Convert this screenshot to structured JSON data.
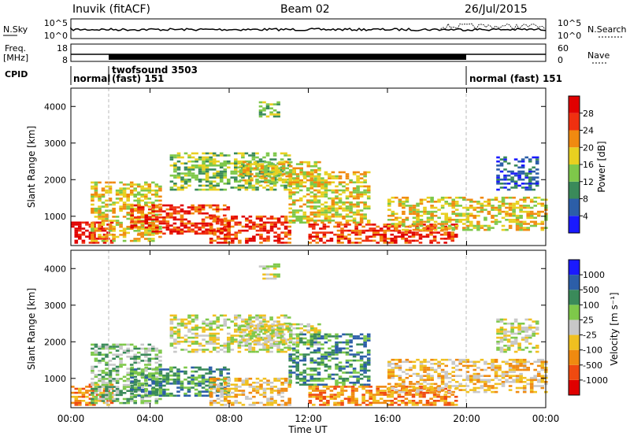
{
  "header": {
    "station": "Inuvik (fitACF)",
    "beam": "Beam 02",
    "date": "26/Jul/2015"
  },
  "noise_panel": {
    "left_label": "N.Sky",
    "left_tick_top": "10^5",
    "left_tick_bottom": "10^0",
    "right_label": "N.Search",
    "right_tick_top": "10^5",
    "right_tick_bottom": "10^0"
  },
  "freq_panel": {
    "left_label_line1": "Freq.",
    "left_label_line2": "[MHz]",
    "left_tick_top": "18",
    "left_tick_bottom": "8",
    "right_label": "Nave",
    "right_tick_top": "60",
    "right_tick_bottom": "0"
  },
  "cpid": {
    "label": "CPID",
    "segments": [
      {
        "text": "normal",
        "text2": ""
      },
      {
        "text": "twofsound 3503",
        "text2": "(fast) 151"
      },
      {
        "text": "normal (fast) 151",
        "text2": ""
      }
    ]
  },
  "colors": {
    "power": [
      "#1a1aff",
      "#2c5ea8",
      "#3a8a5a",
      "#7ec84a",
      "#e8d020",
      "#f08a10",
      "#f03010",
      "#e00000"
    ],
    "velocity": [
      "#e00000",
      "#f04a10",
      "#f08a10",
      "#f0c020",
      "#c8c8c8",
      "#7ec84a",
      "#3a8a5a",
      "#2c5ea8",
      "#1a1aff"
    ]
  },
  "chart_data": [
    {
      "type": "heatmap",
      "ylabel": "Slant Range [km]",
      "yticks": [
        "1000",
        "2000",
        "3000",
        "4000"
      ],
      "ylim": [
        200,
        4500
      ],
      "colorbar": {
        "label": "Power [dB]",
        "ticks": [
          "4",
          "8",
          "12",
          "16",
          "20",
          "24",
          "28"
        ],
        "range": [
          0,
          30
        ]
      }
    },
    {
      "type": "heatmap",
      "ylabel": "Slant Range [km]",
      "yticks": [
        "1000",
        "2000",
        "3000",
        "4000"
      ],
      "ylim": [
        200,
        4500
      ],
      "xlabel": "Time UT",
      "xticks": [
        "00:00",
        "04:00",
        "08:00",
        "12:00",
        "16:00",
        "20:00",
        "00:00"
      ],
      "xlim_hours": [
        0,
        24
      ],
      "colorbar": {
        "label": "Velocity [m s⁻¹]",
        "ticks": [
          "1000",
          "500",
          "100",
          "25",
          "-25",
          "-100",
          "-500",
          "-1000"
        ]
      }
    }
  ]
}
